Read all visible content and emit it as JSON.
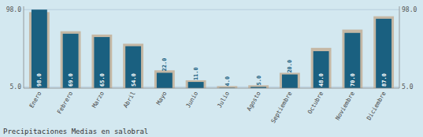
{
  "chart_data": {
    "type": "bar",
    "title": "Precipitaciones Medias en salobral",
    "categories": [
      "Enero",
      "Febrero",
      "Marzo",
      "Abril",
      "Mayo",
      "Junio",
      "Julio",
      "Agosto",
      "Septiembre",
      "Octubre",
      "Noviembre",
      "Diciembre"
    ],
    "series": [
      {
        "color": "#c5b8a5",
        "values": [
          95.0,
          72.0,
          68.0,
          57.0,
          25.0,
          13.0,
          6.0,
          7.0,
          22.0,
          52.0,
          74.0,
          90.0
        ]
      },
      {
        "color": "#1a6080",
        "values": [
          98.0,
          69.0,
          65.0,
          54.0,
          22.0,
          11.0,
          4.0,
          5.0,
          20.0,
          48.0,
          70.0,
          87.0
        ],
        "data_labels": true,
        "value_labels": [
          "98.0",
          "69.0",
          "65.0",
          "54.0",
          "22.0",
          "11.0",
          "4.0",
          "5.0",
          "20.0",
          "48.0",
          "70.0",
          "87.0"
        ]
      }
    ],
    "ylim": [
      3.5,
      102.0
    ],
    "yticks": [
      {
        "value": 5.0,
        "label": "5.0"
      },
      {
        "value": 98.0,
        "label": "98.0"
      }
    ],
    "y2lim": [
      3.5,
      102.0
    ],
    "y2ticks": [
      {
        "value": 5.0,
        "label": "5.0"
      },
      {
        "value": 98.0,
        "label": "98.0"
      }
    ],
    "grid": true
  }
}
